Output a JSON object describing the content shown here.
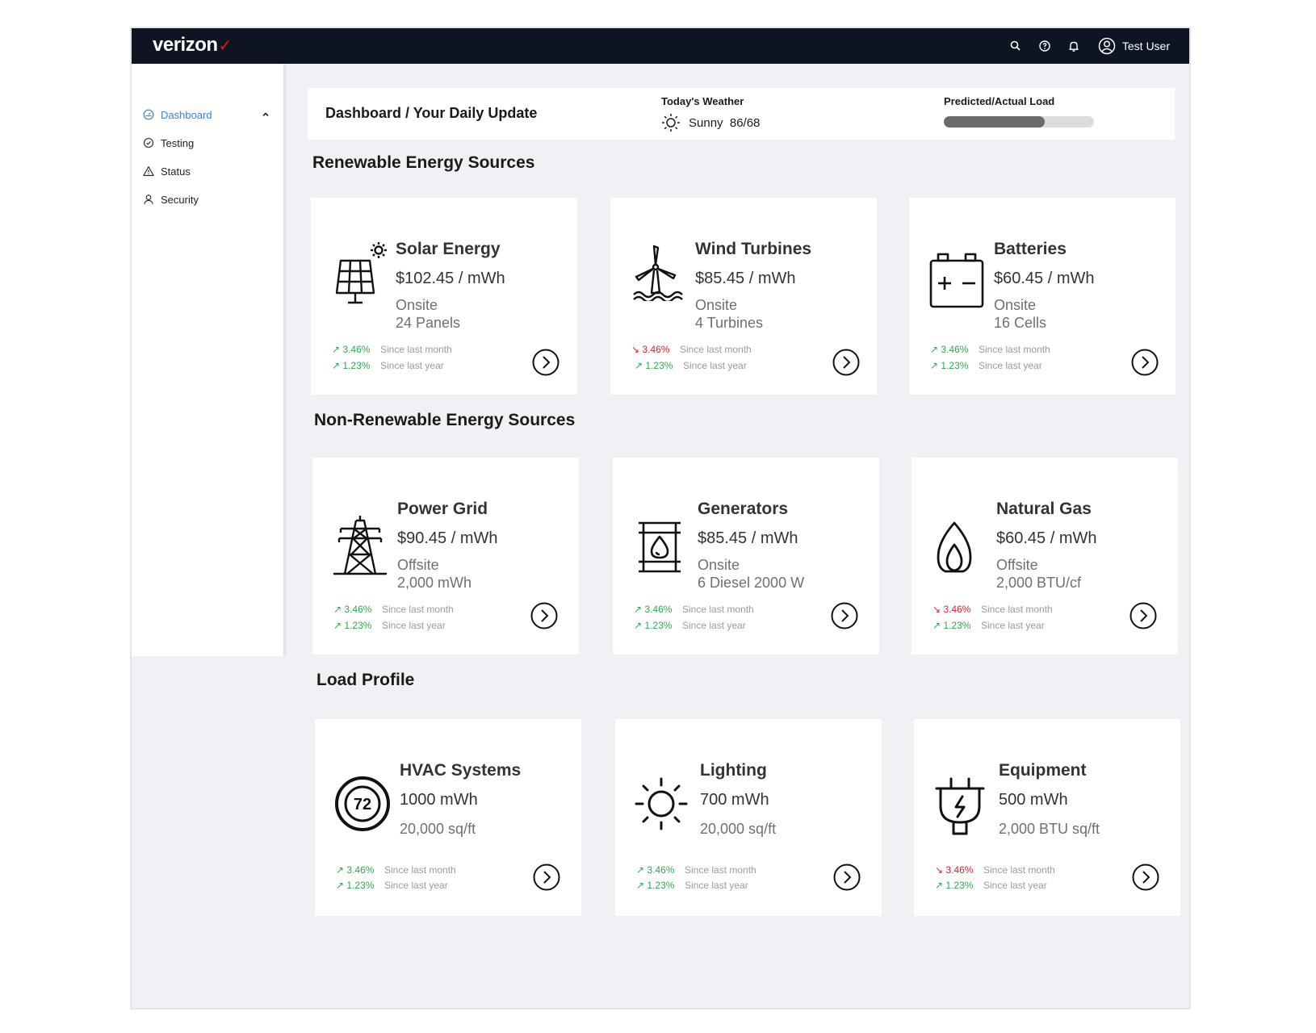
{
  "brand": {
    "logo": "verizon",
    "logo_mark": "✓"
  },
  "topbar": {
    "user_name": "Test User"
  },
  "sidebar": {
    "items": [
      {
        "label": "Dashboard",
        "active": true
      },
      {
        "label": "Testing"
      },
      {
        "label": "Status"
      },
      {
        "label": "Security"
      }
    ]
  },
  "header": {
    "title": "Dashboard / Your Daily Update",
    "weather_label": "Today's Weather",
    "weather_value": "Sunny  86/68",
    "load_label": "Predicted/Actual Load",
    "load_fraction": 0.67
  },
  "sections": {
    "renewable": "Renewable Energy Sources",
    "nonrenewable": "Non-Renewable Energy Sources",
    "load": "Load Profile"
  },
  "cards": {
    "solar": {
      "name": "Solar Energy",
      "price": "$102.45 / mWh",
      "location": "Onsite",
      "quantity": "24 Panels",
      "month_pct": "3.46%",
      "month_label": "Since last month",
      "year_pct": "1.23%",
      "year_label": "Since last year"
    },
    "wind": {
      "name": "Wind Turbines",
      "price": "$85.45 / mWh",
      "location": "Onsite",
      "quantity": "4 Turbines",
      "month_pct": "3.46%",
      "month_label": "Since last month",
      "year_pct": "1.23%",
      "year_label": "Since last year"
    },
    "batteries": {
      "name": "Batteries",
      "price": "$60.45 / mWh",
      "location": "Onsite",
      "quantity": "16 Cells",
      "month_pct": "3.46%",
      "month_label": "Since last month",
      "year_pct": "1.23%",
      "year_label": "Since last year"
    },
    "grid": {
      "name": "Power Grid",
      "price": "$90.45 / mWh",
      "location": "Offsite",
      "quantity": "2,000 mWh",
      "month_pct": "3.46%",
      "month_label": "Since last month",
      "year_pct": "1.23%",
      "year_label": "Since last year"
    },
    "generators": {
      "name": "Generators",
      "price": "$85.45 / mWh",
      "location": "Onsite",
      "quantity": "6 Diesel 2000 W",
      "month_pct": "3.46%",
      "month_label": "Since last month",
      "year_pct": "1.23%",
      "year_label": "Since last year"
    },
    "gas": {
      "name": "Natural Gas",
      "price": "$60.45 / mWh",
      "location": "Offsite",
      "quantity": "2,000 BTU/cf",
      "month_pct": "3.46%",
      "month_label": "Since last month",
      "year_pct": "1.23%",
      "year_label": "Since last year"
    },
    "hvac": {
      "name": "HVAC Systems",
      "usage": "1000 mWh",
      "area": "20,000 sq/ft",
      "icon_text": "72",
      "month_pct": "3.46%",
      "month_label": "Since last month",
      "year_pct": "1.23%",
      "year_label": "Since last year"
    },
    "lighting": {
      "name": "Lighting",
      "usage": "700 mWh",
      "area": "20,000 sq/ft",
      "month_pct": "3.46%",
      "month_label": "Since last month",
      "year_pct": "1.23%",
      "year_label": "Since last year"
    },
    "equipment": {
      "name": "Equipment",
      "usage": "500 mWh",
      "area": "2,000 BTU sq/ft",
      "month_pct": "3.46%",
      "month_label": "Since last month",
      "year_pct": "1.23%",
      "year_label": "Since last year"
    }
  },
  "colors": {
    "up": "#2fa84f",
    "down": "#e0202c",
    "active_nav": "#3b82d6",
    "topbar": "#0c1521"
  }
}
